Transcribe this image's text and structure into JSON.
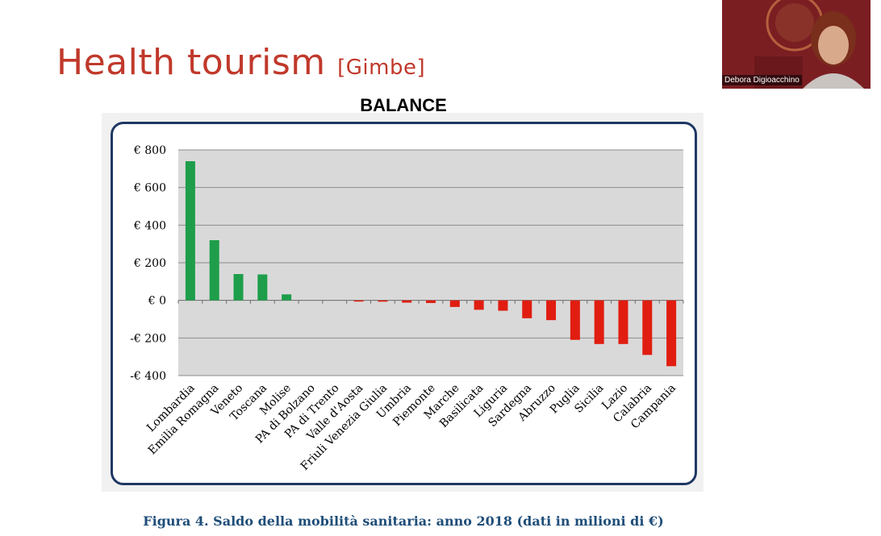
{
  "slide": {
    "title": "Health tourism",
    "title_suffix": "[Gimbe]",
    "chart_heading": "BALANCE",
    "caption": "Figura 4. Saldo della mobilità sanitaria: anno 2018 (dati in milioni di €)"
  },
  "video": {
    "participant_name": "Debora Digioacchino"
  },
  "colors": {
    "positive_bar": "#1e9e4a",
    "negative_bar": "#e01d10",
    "border": "#1f3864",
    "title": "#c0392b",
    "caption": "#1f4e79"
  },
  "chart_data": {
    "type": "bar",
    "categories": [
      "Lombardia",
      "Emilia Romagna",
      "Veneto",
      "Toscana",
      "Molise",
      "PA di Bolzano",
      "PA di Trento",
      "Valle d'Aosta",
      "Friuli Venezia Giulia",
      "Umbria",
      "Piemonte",
      "Marche",
      "Basilicata",
      "Liguria",
      "Sardegna",
      "Abruzzo",
      "Puglia",
      "Sicilia",
      "Lazio",
      "Calabria",
      "Campania"
    ],
    "values": [
      740,
      320,
      140,
      138,
      32,
      0,
      0,
      -5,
      -7,
      -12,
      -14,
      -35,
      -50,
      -55,
      -95,
      -105,
      -210,
      -232,
      -232,
      -290,
      -350
    ],
    "ytick_labels": [
      "€ 800",
      "€ 600",
      "€ 400",
      "€ 200",
      "€ 0",
      "-€ 200",
      "-€ 400"
    ],
    "ytick_values": [
      800,
      600,
      400,
      200,
      0,
      -200,
      -400
    ],
    "ylim": [
      -400,
      800
    ],
    "grid": true
  }
}
